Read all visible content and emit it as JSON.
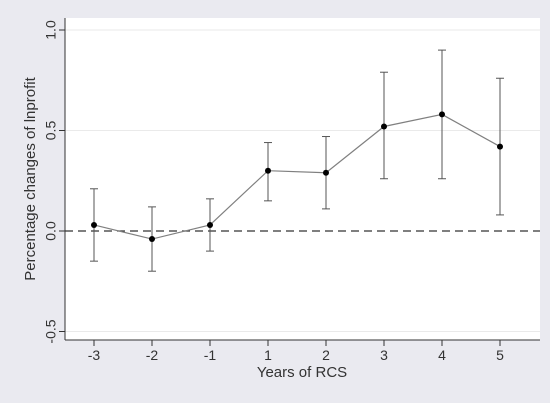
{
  "chart_data": {
    "type": "line",
    "title": "",
    "xlabel": "Years of RCS",
    "ylabel": "Percentage changes of lnprofit",
    "categories": [
      "-3",
      "-2",
      "-1",
      "1",
      "2",
      "3",
      "4",
      "5"
    ],
    "ylim": [
      -0.55,
      1.0
    ],
    "yticks": [
      -0.5,
      0.0,
      0.5,
      1.0
    ],
    "ytick_labels": [
      "-0.5",
      "0.0",
      "0.5",
      "1.0"
    ],
    "grid": true,
    "reference_line": {
      "y": 0,
      "style": "dashed"
    },
    "series": [
      {
        "values": [
          0.03,
          -0.04,
          0.03,
          0.3,
          0.29,
          0.52,
          0.58,
          0.42
        ],
        "lower": [
          -0.15,
          -0.2,
          -0.1,
          0.15,
          0.11,
          0.26,
          0.26,
          0.08
        ],
        "upper": [
          0.21,
          0.12,
          0.16,
          0.44,
          0.47,
          0.79,
          0.9,
          0.76
        ]
      }
    ],
    "colors": {
      "line": "#808080",
      "marker": "#000000",
      "errorbar": "#555555",
      "refline": "#333333",
      "plot_bg": "#ffffff",
      "page_bg": "#eaeaf0",
      "grid": "#eaeaea"
    }
  }
}
